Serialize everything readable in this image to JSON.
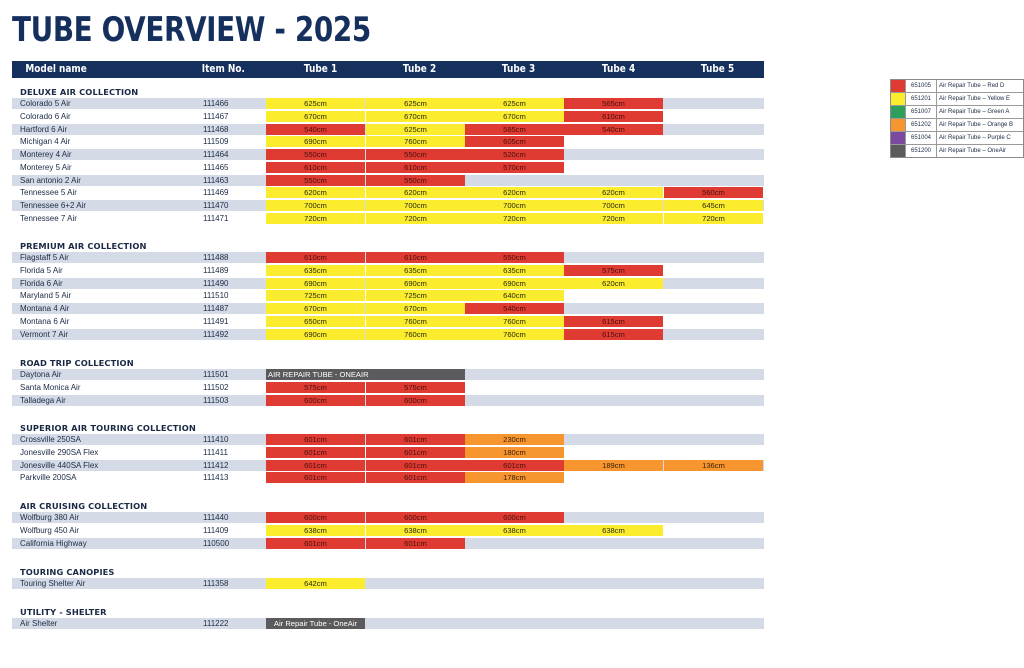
{
  "page": {
    "title": "TUBE OVERVIEW - 2025"
  },
  "header": {
    "model": "Model name",
    "item": "Item No.",
    "tube1": "Tube 1",
    "tube2": "Tube 2",
    "tube3": "Tube 3",
    "tube4": "Tube 4",
    "tube5": "Tube 5"
  },
  "colors": {
    "red": "#e03b33",
    "yellow": "#fbed2d",
    "green": "#2e9e5b",
    "orange": "#f7952f",
    "purple": "#7b4aa0",
    "gray": "#5b5b5d",
    "header": "#16305e",
    "row_shade": "#d4dbe6"
  },
  "legend": [
    {
      "color": "red",
      "code": "651005",
      "label": "Air Repair Tube – Red D"
    },
    {
      "color": "yellow",
      "code": "651201",
      "label": "Air Repair Tube – Yellow E"
    },
    {
      "color": "green",
      "code": "651007",
      "label": "Air Repair Tube – Green A"
    },
    {
      "color": "orange",
      "code": "651202",
      "label": "Air Repair Tube – Orange B"
    },
    {
      "color": "purple",
      "code": "651004",
      "label": "Air Repair Tube – Purple C"
    },
    {
      "color": "gray",
      "code": "651200",
      "label": "Air Repair Tube – OneAir"
    }
  ],
  "sections": [
    {
      "title": "DELUXE AIR COLLECTION",
      "rows": [
        {
          "name": "Colorado 5 Air",
          "item": "111466",
          "tubes": [
            {
              "v": "625cm",
              "c": "yellow"
            },
            {
              "v": "625cm",
              "c": "yellow"
            },
            {
              "v": "625cm",
              "c": "yellow"
            },
            {
              "v": "565cm",
              "c": "red"
            }
          ]
        },
        {
          "name": "Colorado 6 Air",
          "item": "111467",
          "tubes": [
            {
              "v": "670cm",
              "c": "yellow"
            },
            {
              "v": "670cm",
              "c": "yellow"
            },
            {
              "v": "670cm",
              "c": "yellow"
            },
            {
              "v": "610cm",
              "c": "red"
            }
          ]
        },
        {
          "name": "Hartford 6 Air",
          "item": "111468",
          "tubes": [
            {
              "v": "540cm",
              "c": "red"
            },
            {
              "v": "625cm",
              "c": "yellow"
            },
            {
              "v": "585cm",
              "c": "red"
            },
            {
              "v": "540cm",
              "c": "red"
            }
          ]
        },
        {
          "name": "Michigan 4 Air",
          "item": "111509",
          "tubes": [
            {
              "v": "690cm",
              "c": "yellow"
            },
            {
              "v": "760cm",
              "c": "yellow"
            },
            {
              "v": "605cm",
              "c": "red"
            }
          ]
        },
        {
          "name": "Monterey 4 Air",
          "item": "111464",
          "tubes": [
            {
              "v": "550cm",
              "c": "red"
            },
            {
              "v": "550cm",
              "c": "red"
            },
            {
              "v": "520cm",
              "c": "red"
            }
          ]
        },
        {
          "name": "Monterey 5 Air",
          "item": "111465",
          "tubes": [
            {
              "v": "610cm",
              "c": "red"
            },
            {
              "v": "610cm",
              "c": "red"
            },
            {
              "v": "570cm",
              "c": "red"
            }
          ]
        },
        {
          "name": "San antonio 2 Air",
          "item": "111463",
          "tubes": [
            {
              "v": "550cm",
              "c": "red"
            },
            {
              "v": "550cm",
              "c": "red"
            }
          ]
        },
        {
          "name": "Tennessee 5 Air",
          "item": "111469",
          "tubes": [
            {
              "v": "620cm",
              "c": "yellow"
            },
            {
              "v": "620cm",
              "c": "yellow"
            },
            {
              "v": "620cm",
              "c": "yellow"
            },
            {
              "v": "620cm",
              "c": "yellow"
            },
            {
              "v": "560cm",
              "c": "red"
            }
          ]
        },
        {
          "name": "Tennessee 6+2 Air",
          "item": "111470",
          "tubes": [
            {
              "v": "700cm",
              "c": "yellow"
            },
            {
              "v": "700cm",
              "c": "yellow"
            },
            {
              "v": "700cm",
              "c": "yellow"
            },
            {
              "v": "700cm",
              "c": "yellow"
            },
            {
              "v": "645cm",
              "c": "yellow"
            }
          ]
        },
        {
          "name": "Tennessee 7 Air",
          "item": "111471",
          "tubes": [
            {
              "v": "720cm",
              "c": "yellow"
            },
            {
              "v": "720cm",
              "c": "yellow"
            },
            {
              "v": "720cm",
              "c": "yellow"
            },
            {
              "v": "720cm",
              "c": "yellow"
            },
            {
              "v": "720cm",
              "c": "yellow"
            }
          ]
        }
      ]
    },
    {
      "title": "PREMIUM AIR COLLECTION",
      "rows": [
        {
          "name": "Flagstaff 5 Air",
          "item": "111488",
          "tubes": [
            {
              "v": "610cm",
              "c": "red"
            },
            {
              "v": "610cm",
              "c": "red"
            },
            {
              "v": "550cm",
              "c": "red"
            }
          ]
        },
        {
          "name": "Florida 5 Air",
          "item": "111489",
          "tubes": [
            {
              "v": "635cm",
              "c": "yellow"
            },
            {
              "v": "635cm",
              "c": "yellow"
            },
            {
              "v": "635cm",
              "c": "yellow"
            },
            {
              "v": "575cm",
              "c": "red"
            }
          ]
        },
        {
          "name": "Florida 6 Air",
          "item": "111490",
          "tubes": [
            {
              "v": "690cm",
              "c": "yellow"
            },
            {
              "v": "690cm",
              "c": "yellow"
            },
            {
              "v": "690cm",
              "c": "yellow"
            },
            {
              "v": "620cm",
              "c": "yellow"
            }
          ]
        },
        {
          "name": "Maryland 5 Air",
          "item": "111510",
          "tubes": [
            {
              "v": "725cm",
              "c": "yellow"
            },
            {
              "v": "725cm",
              "c": "yellow"
            },
            {
              "v": "640cm",
              "c": "yellow"
            }
          ]
        },
        {
          "name": "Montana 4 Air",
          "item": "111487",
          "tubes": [
            {
              "v": "670cm",
              "c": "yellow"
            },
            {
              "v": "670cm",
              "c": "yellow"
            },
            {
              "v": "540cm",
              "c": "red"
            }
          ]
        },
        {
          "name": "Montana 6 Air",
          "item": "111491",
          "tubes": [
            {
              "v": "650cm",
              "c": "yellow"
            },
            {
              "v": "760cm",
              "c": "yellow"
            },
            {
              "v": "760cm",
              "c": "yellow"
            },
            {
              "v": "615cm",
              "c": "red"
            }
          ]
        },
        {
          "name": "Vermont 7 Air",
          "item": "111492",
          "tubes": [
            {
              "v": "690cm",
              "c": "yellow"
            },
            {
              "v": "760cm",
              "c": "yellow"
            },
            {
              "v": "760cm",
              "c": "yellow"
            },
            {
              "v": "615cm",
              "c": "red"
            }
          ]
        }
      ]
    },
    {
      "title": "ROAD TRIP COLLECTION",
      "rows": [
        {
          "name": "Daytona Air",
          "item": "111501",
          "tubes": [
            {
              "v": "AIR REPAIR TUBE - ONEAIR",
              "c": "gray",
              "span": 2
            }
          ]
        },
        {
          "name": "Santa Monica Air",
          "item": "111502",
          "tubes": [
            {
              "v": "575cm",
              "c": "red"
            },
            {
              "v": "575cm",
              "c": "red"
            }
          ]
        },
        {
          "name": "Talladega Air",
          "item": "111503",
          "tubes": [
            {
              "v": "600cm",
              "c": "red"
            },
            {
              "v": "600cm",
              "c": "red"
            }
          ]
        }
      ]
    },
    {
      "title": "SUPERIOR AIR TOURING COLLECTION",
      "rows": [
        {
          "name": "Crossville 250SA",
          "item": "111410",
          "tubes": [
            {
              "v": "601cm",
              "c": "red"
            },
            {
              "v": "601cm",
              "c": "red"
            },
            {
              "v": "230cm",
              "c": "orange"
            }
          ]
        },
        {
          "name": "Jonesville 290SA Flex",
          "item": "111411",
          "tubes": [
            {
              "v": "601cm",
              "c": "red"
            },
            {
              "v": "601cm",
              "c": "red"
            },
            {
              "v": "180cm",
              "c": "orange"
            }
          ]
        },
        {
          "name": "Jonesville 440SA Flex",
          "item": "111412",
          "tubes": [
            {
              "v": "601cm",
              "c": "red"
            },
            {
              "v": "601cm",
              "c": "red"
            },
            {
              "v": "601cm",
              "c": "red"
            },
            {
              "v": "189cm",
              "c": "orange"
            },
            {
              "v": "136cm",
              "c": "orange"
            }
          ]
        },
        {
          "name": "Parkville 200SA",
          "item": "111413",
          "tubes": [
            {
              "v": "601cm",
              "c": "red"
            },
            {
              "v": "601cm",
              "c": "red"
            },
            {
              "v": "178cm",
              "c": "orange"
            }
          ]
        }
      ]
    },
    {
      "title": "AIR CRUISING COLLECTION",
      "rows": [
        {
          "name": "Wolfburg 380 Air",
          "item": "111440",
          "tubes": [
            {
              "v": "600cm",
              "c": "red"
            },
            {
              "v": "600cm",
              "c": "red"
            },
            {
              "v": "600cm",
              "c": "red"
            }
          ]
        },
        {
          "name": "Wolfburg 450 Air",
          "item": "111409",
          "tubes": [
            {
              "v": "638cm",
              "c": "yellow"
            },
            {
              "v": "638cm",
              "c": "yellow"
            },
            {
              "v": "638cm",
              "c": "yellow"
            },
            {
              "v": "638cm",
              "c": "yellow"
            }
          ]
        },
        {
          "name": "California Highway",
          "item": "110500",
          "tubes": [
            {
              "v": "601cm",
              "c": "red"
            },
            {
              "v": "601cm",
              "c": "red"
            }
          ]
        }
      ]
    },
    {
      "title": "TOURING CANOPIES",
      "rows": [
        {
          "name": "Touring Shelter Air",
          "item": "111358",
          "tubes": [
            {
              "v": "642cm",
              "c": "yellow"
            }
          ]
        }
      ]
    },
    {
      "title": "UTILITY - SHELTER",
      "rows": [
        {
          "name": "Air Shelter",
          "item": "111222",
          "tubes": [
            {
              "v": "Air Repair Tube - OneAir",
              "c": "grayc"
            }
          ]
        }
      ]
    }
  ]
}
